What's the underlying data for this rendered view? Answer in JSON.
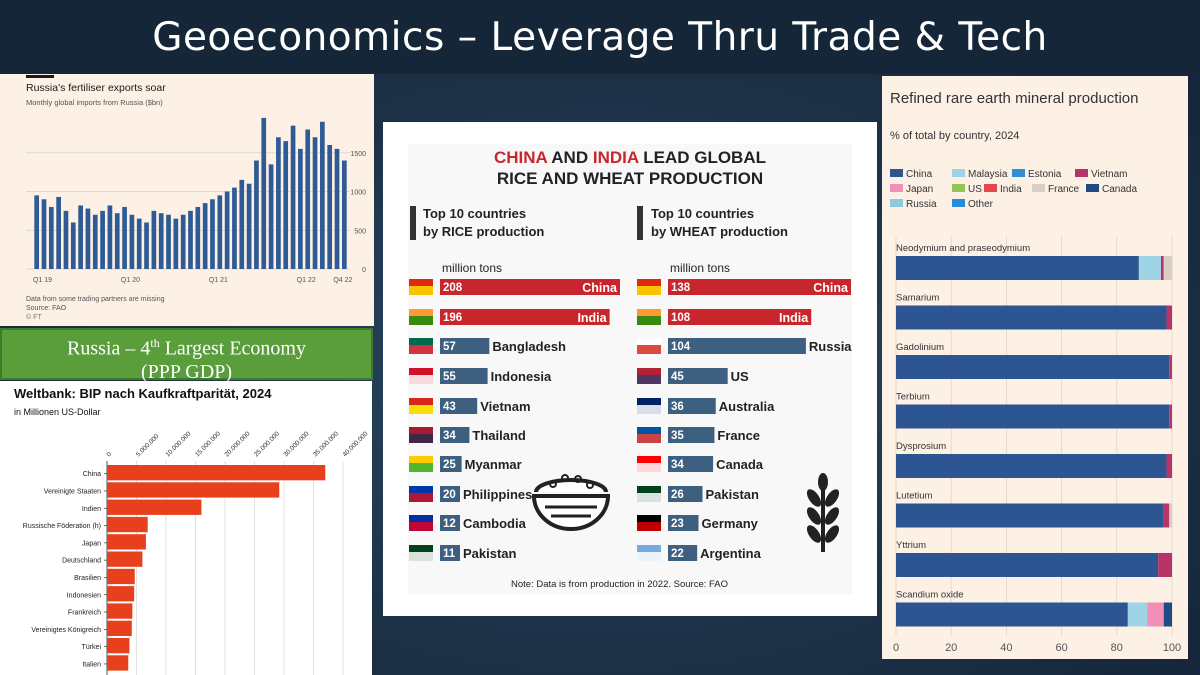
{
  "slide": {
    "title": "Geoeconomics – Leverage Thru Trade & Tech"
  },
  "fert": {
    "title": "Russia's fertiliser exports soar",
    "subtitle": "Monthly global imports from Russia ($bn)",
    "note1": "Data from some trading partners are missing",
    "note2": "Source: FAO",
    "note3": "© FT"
  },
  "rice_wheat": {
    "title_part1": "CHINA",
    "title_and": " AND ",
    "title_part2": "INDIA",
    "title_rest": " LEAD GLOBAL",
    "title_line2": "RICE AND WHEAT PRODUCTION",
    "rice_header_1": "Top 10 countries",
    "rice_header_2": "by RICE production",
    "wheat_header_1": "Top 10 countries",
    "wheat_header_2": "by WHEAT production",
    "unit": "million tons",
    "note": "Note: Data is from production in 2022.    Source: FAO",
    "colors": {
      "red": "#c8262c",
      "blue": "#3d5f80"
    }
  },
  "ru_banner": {
    "line1_a": "Russia – 4",
    "line1_sup": "th",
    "line1_b": " Largest Economy",
    "line2": "(PPP GDP)"
  },
  "gdp": {
    "title": "Weltbank: BIP nach Kaufkraftparität, 2024",
    "subtitle": "in Millionen US-Dollar"
  },
  "rare": {
    "title": "Refined rare earth mineral production",
    "subtitle": "% of total by country, 2024"
  },
  "chart_data": [
    {
      "id": "fertiliser",
      "type": "bar",
      "title": "Russia's fertiliser exports soar",
      "ylabel": "Monthly global imports from Russia ($bn)",
      "x_tick_labels": [
        "Q1 19",
        "Q1 20",
        "Q1 21",
        "Q1 22",
        "Q4 22"
      ],
      "y_ticks": [
        0,
        500,
        1000,
        1500
      ],
      "ylim": [
        0,
        2000
      ],
      "values": [
        950,
        900,
        800,
        930,
        750,
        600,
        820,
        780,
        700,
        750,
        820,
        720,
        800,
        700,
        650,
        600,
        750,
        720,
        700,
        650,
        700,
        750,
        800,
        850,
        900,
        950,
        1000,
        1050,
        1150,
        1100,
        1400,
        1950,
        1350,
        1700,
        1650,
        1850,
        1550,
        1800,
        1700,
        1900,
        1600,
        1550,
        1400
      ],
      "color": "#2e5b95"
    },
    {
      "id": "rice",
      "type": "bar",
      "title": "Top 10 countries by RICE production",
      "unit": "million tons",
      "categories": [
        "China",
        "India",
        "Bangladesh",
        "Indonesia",
        "Vietnam",
        "Thailand",
        "Myanmar",
        "Philippines",
        "Cambodia",
        "Pakistan"
      ],
      "values": [
        208,
        196,
        57,
        55,
        43,
        34,
        25,
        20,
        12,
        11
      ]
    },
    {
      "id": "wheat",
      "type": "bar",
      "title": "Top 10 countries by WHEAT production",
      "unit": "million tons",
      "categories": [
        "China",
        "India",
        "Russia",
        "US",
        "Australia",
        "France",
        "Canada",
        "Pakistan",
        "Germany",
        "Argentina"
      ],
      "values": [
        138,
        108,
        104,
        45,
        36,
        35,
        34,
        26,
        23,
        22
      ]
    },
    {
      "id": "gdp_ppp",
      "type": "bar",
      "orientation": "horizontal",
      "title": "Weltbank: BIP nach Kaufkraftparität, 2024",
      "xlabel": "in Millionen US-Dollar",
      "x_tick_labels": [
        "0",
        "5.000.000",
        "10.000.000",
        "15.000.000",
        "20.000.000",
        "25.000.000",
        "30.000.000",
        "35.000.000",
        "40.000.000"
      ],
      "xlim": [
        0,
        40000000
      ],
      "categories": [
        "China",
        "Vereinigte Staaten",
        "Indien",
        "Russische Föderation (h)",
        "Japan",
        "Deutschland",
        "Brasilien",
        "Indonesien",
        "Frankreich",
        "Vereinigtes Königreich",
        "Türkei",
        "Italien"
      ],
      "values": [
        37000000,
        29200000,
        16000000,
        6900000,
        6600000,
        6000000,
        4700000,
        4600000,
        4300000,
        4200000,
        3800000,
        3600000
      ],
      "color": "#e8401c"
    },
    {
      "id": "rare_earth",
      "type": "bar",
      "orientation": "horizontal",
      "stacked": true,
      "title": "Refined rare earth mineral production",
      "subtitle": "% of total by country, 2024",
      "xlim": [
        0,
        100
      ],
      "x_tick_labels": [
        "0",
        "20",
        "40",
        "60",
        "80",
        "100"
      ],
      "categories": [
        "Neodymium and praseodymium",
        "Samarium",
        "Gadolinium",
        "Terbium",
        "Dysprosium",
        "Lutetium",
        "Yttrium",
        "Scandium oxide"
      ],
      "series": [
        {
          "name": "China",
          "color": "#2c5591",
          "values": [
            88,
            98,
            99,
            99,
            98,
            97,
            95,
            84
          ]
        },
        {
          "name": "Malaysia",
          "color": "#9fd3e6",
          "values": [
            8,
            0,
            0,
            0,
            0,
            0,
            0,
            7
          ]
        },
        {
          "name": "Estonia",
          "color": "#2f8fd2",
          "values": [
            0,
            0,
            0,
            0,
            0,
            0,
            0,
            0
          ]
        },
        {
          "name": "Vietnam",
          "color": "#b83468",
          "values": [
            1,
            2,
            1,
            1,
            2,
            2,
            5,
            0
          ]
        },
        {
          "name": "Japan",
          "color": "#f28fb6",
          "values": [
            0,
            0,
            0,
            0,
            0,
            0,
            0,
            6
          ]
        },
        {
          "name": "US",
          "color": "#96c454",
          "values": [
            0,
            0,
            0,
            0,
            0,
            0,
            0,
            0
          ]
        },
        {
          "name": "India",
          "color": "#e4484c",
          "values": [
            0,
            0,
            0,
            0,
            0,
            0,
            0,
            0
          ]
        },
        {
          "name": "France",
          "color": "#d8cec4",
          "values": [
            3,
            0,
            0,
            0,
            0,
            1,
            0,
            0
          ]
        },
        {
          "name": "Canada",
          "color": "#1d4b82",
          "values": [
            0,
            0,
            0,
            0,
            0,
            0,
            0,
            3
          ]
        },
        {
          "name": "Russia",
          "color": "#8ec9e2",
          "values": [
            0,
            0,
            0,
            0,
            0,
            0,
            0,
            0
          ]
        },
        {
          "name": "Other",
          "color": "#2a8cd4",
          "values": [
            0,
            0,
            0,
            0,
            0,
            0,
            0,
            0
          ]
        }
      ]
    }
  ]
}
